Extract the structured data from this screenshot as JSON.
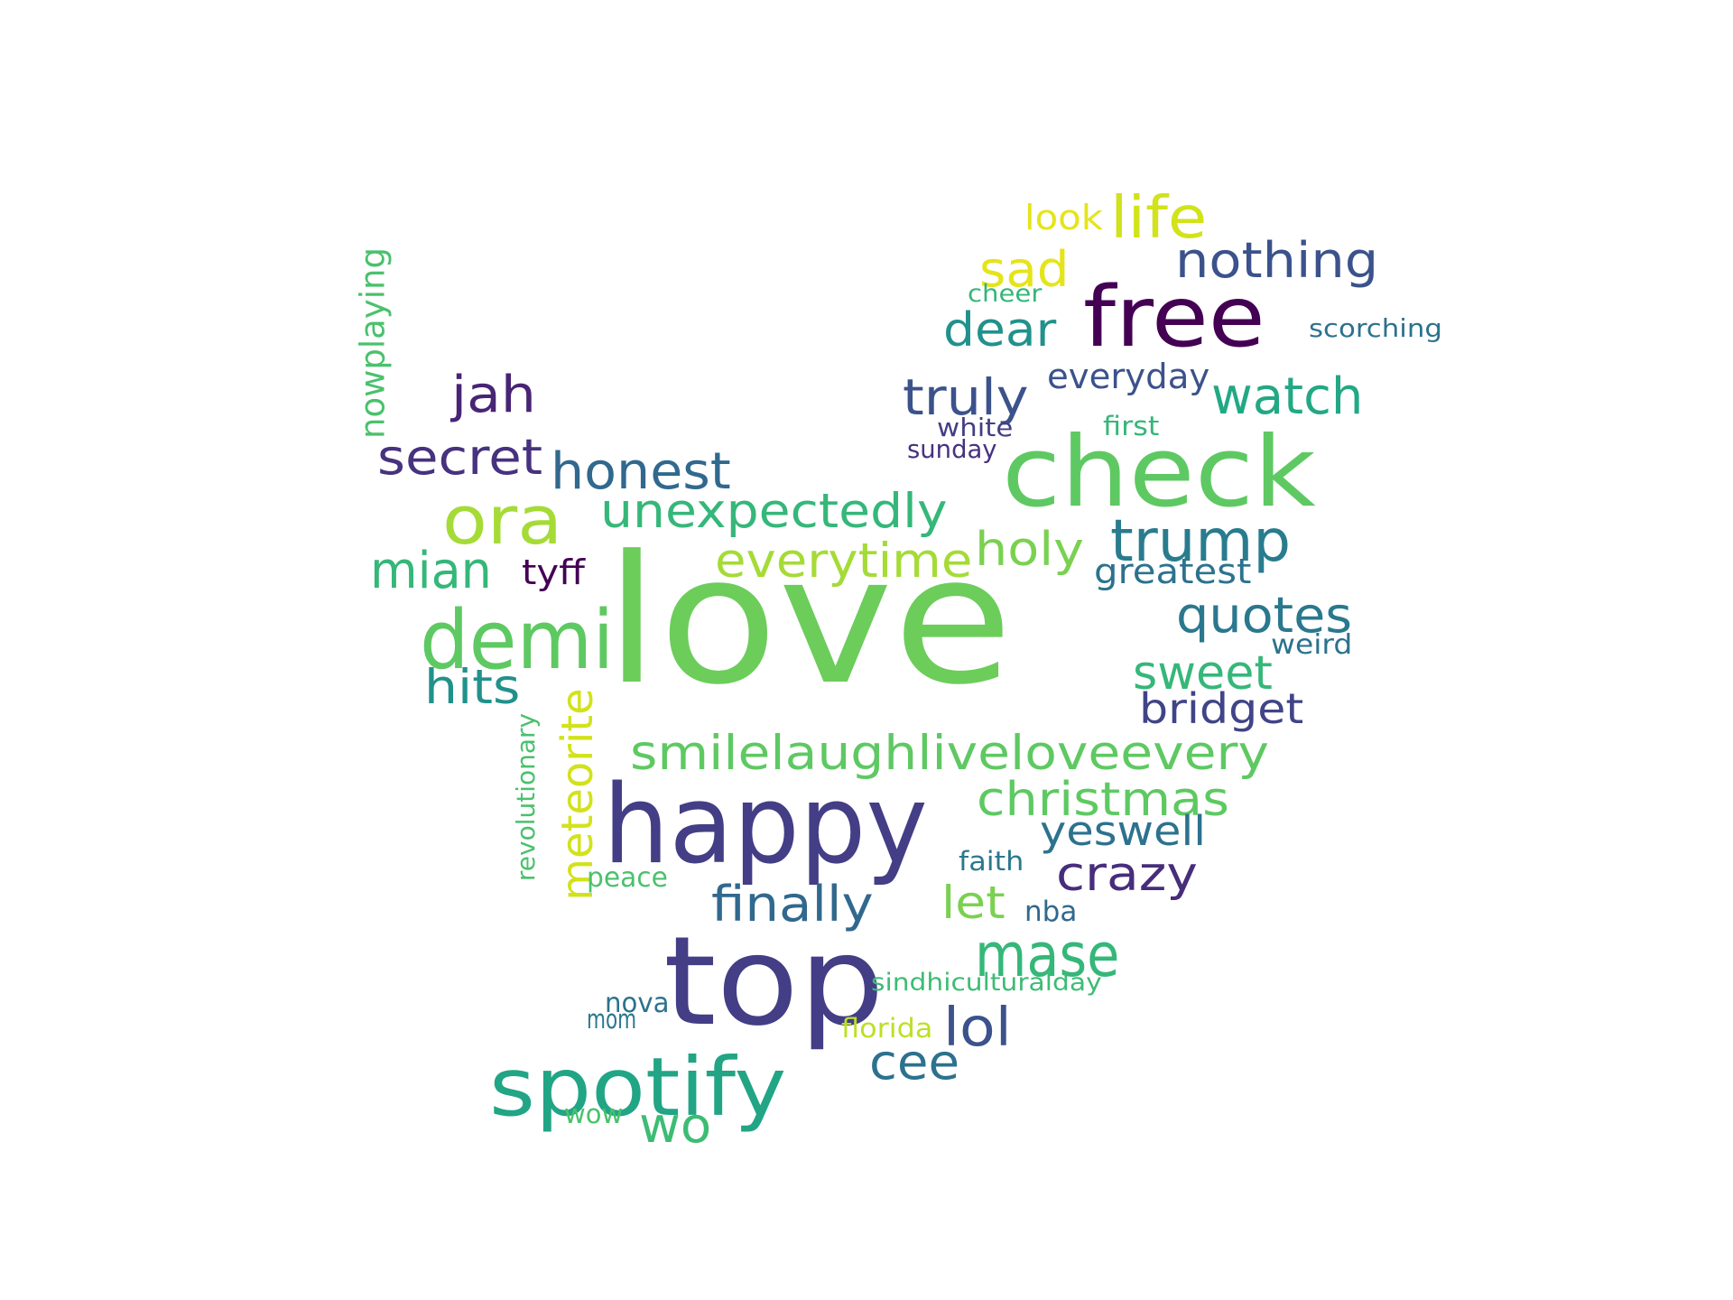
{
  "words": [
    {
      "text": "love",
      "color": "#6ccd5a"
    },
    {
      "text": "check",
      "color": "#5ec962"
    },
    {
      "text": "free",
      "color": "#440154"
    },
    {
      "text": "happy",
      "color": "#433e85"
    },
    {
      "text": "top",
      "color": "#433e85"
    },
    {
      "text": "demi",
      "color": "#5ec962"
    },
    {
      "text": "ora",
      "color": "#a5db36"
    },
    {
      "text": "spotify",
      "color": "#21a585"
    },
    {
      "text": "life",
      "color": "#d2e21b"
    },
    {
      "text": "nothing",
      "color": "#3b528b"
    },
    {
      "text": "sad",
      "color": "#e5e419"
    },
    {
      "text": "look",
      "color": "#e5e419"
    },
    {
      "text": "dear",
      "color": "#21918c"
    },
    {
      "text": "cheer",
      "color": "#35b779"
    },
    {
      "text": "scorching",
      "color": "#2c728e"
    },
    {
      "text": "everyday",
      "color": "#3b528b"
    },
    {
      "text": "jah",
      "color": "#482475"
    },
    {
      "text": "truly",
      "color": "#3b528b"
    },
    {
      "text": "watch",
      "color": "#22a884"
    },
    {
      "text": "nowplaying",
      "color": "#4ac16d"
    },
    {
      "text": "secret",
      "color": "#46327e"
    },
    {
      "text": "honest",
      "color": "#31688e"
    },
    {
      "text": "white",
      "color": "#433e85"
    },
    {
      "text": "first",
      "color": "#35b779"
    },
    {
      "text": "sunday",
      "color": "#46327e"
    },
    {
      "text": "unexpectedly",
      "color": "#35b779"
    },
    {
      "text": "everytime",
      "color": "#a5db36"
    },
    {
      "text": "holy",
      "color": "#7ad151"
    },
    {
      "text": "trump",
      "color": "#287c8e"
    },
    {
      "text": "mian",
      "color": "#35b779"
    },
    {
      "text": "tyff",
      "color": "#440154"
    },
    {
      "text": "greatest",
      "color": "#2c728e"
    },
    {
      "text": "quotes",
      "color": "#2a788e"
    },
    {
      "text": "weird",
      "color": "#2c728e"
    },
    {
      "text": "hits",
      "color": "#21918c"
    },
    {
      "text": "meteorite",
      "color": "#d2e21b"
    },
    {
      "text": "sweet",
      "color": "#35b779"
    },
    {
      "text": "bridget",
      "color": "#414487"
    },
    {
      "text": "smilelaughliveloveevery",
      "color": "#5ec962"
    },
    {
      "text": "revolutionary",
      "color": "#4ac16d"
    },
    {
      "text": "christmas",
      "color": "#5ec962"
    },
    {
      "text": "yeswell",
      "color": "#2c728e"
    },
    {
      "text": "crazy",
      "color": "#472d7b"
    },
    {
      "text": "faith",
      "color": "#2a788e"
    },
    {
      "text": "peace",
      "color": "#4ac16d"
    },
    {
      "text": "finally",
      "color": "#31688e"
    },
    {
      "text": "let",
      "color": "#7ad151"
    },
    {
      "text": "nba",
      "color": "#31688e"
    },
    {
      "text": "mase",
      "color": "#35b779"
    },
    {
      "text": "sindhiculturalday",
      "color": "#3dbc74"
    },
    {
      "text": "nova",
      "color": "#2c728e"
    },
    {
      "text": "mom",
      "color": "#2a788e"
    },
    {
      "text": "florida",
      "color": "#bddf26"
    },
    {
      "text": "lol",
      "color": "#3b528b"
    },
    {
      "text": "cee",
      "color": "#2c728e"
    },
    {
      "text": "wo",
      "color": "#3dbc74"
    },
    {
      "text": "wow",
      "color": "#4ac16d"
    }
  ]
}
